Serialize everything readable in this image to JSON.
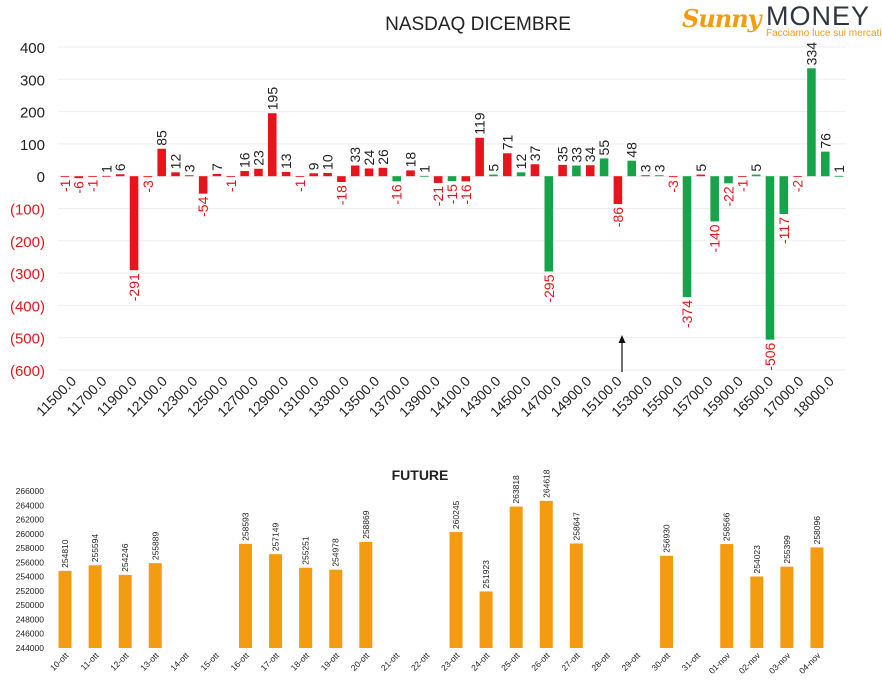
{
  "logo": {
    "word1": "Sunny",
    "word2": "MONEY",
    "tagline": "Facciamo luce sui mercati"
  },
  "colors": {
    "red": "#e8141c",
    "green": "#15a449",
    "orange": "#f39c12",
    "axis_red": "#e8141c",
    "text": "#222222"
  },
  "chart_data": [
    {
      "type": "bar",
      "title": "NASDAQ DICEMBRE",
      "ylim": [
        -600,
        400
      ],
      "yticks": [
        400,
        300,
        200,
        100,
        0,
        -100,
        -200,
        -300,
        -400,
        -500,
        -600
      ],
      "ytick_labels": [
        "400",
        "300",
        "200",
        "100",
        "0",
        "(100)",
        "(200)",
        "(300)",
        "(400)",
        "(500)",
        "(600)"
      ],
      "x_tick_labels": [
        "11500.0",
        "11700.0",
        "11900.0",
        "12100.0",
        "12300.0",
        "12500.0",
        "12700.0",
        "12900.0",
        "13100.0",
        "13300.0",
        "13500.0",
        "13700.0",
        "13900.0",
        "14100.0",
        "14300.0",
        "14500.0",
        "14700.0",
        "14900.0",
        "15100.0",
        "15300.0",
        "15500.0",
        "15700.0",
        "15900.0",
        "16500.0",
        "17000.0",
        "18000.0"
      ],
      "bars": [
        {
          "v": -1,
          "c": "red"
        },
        {
          "v": -6,
          "c": "red"
        },
        {
          "v": -1,
          "c": "red"
        },
        {
          "v": 1,
          "c": "red"
        },
        {
          "v": 6,
          "c": "red"
        },
        {
          "v": -291,
          "c": "red"
        },
        {
          "v": -3,
          "c": "red"
        },
        {
          "v": 85,
          "c": "red"
        },
        {
          "v": 12,
          "c": "red"
        },
        {
          "v": 3,
          "c": "red"
        },
        {
          "v": -54,
          "c": "red"
        },
        {
          "v": 7,
          "c": "red"
        },
        {
          "v": -1,
          "c": "red"
        },
        {
          "v": 16,
          "c": "red"
        },
        {
          "v": 23,
          "c": "red"
        },
        {
          "v": 195,
          "c": "red"
        },
        {
          "v": 13,
          "c": "red"
        },
        {
          "v": -1,
          "c": "red"
        },
        {
          "v": 9,
          "c": "red"
        },
        {
          "v": 10,
          "c": "red"
        },
        {
          "v": -18,
          "c": "red"
        },
        {
          "v": 33,
          "c": "red"
        },
        {
          "v": 24,
          "c": "red"
        },
        {
          "v": 26,
          "c": "red"
        },
        {
          "v": -16,
          "c": "green"
        },
        {
          "v": 18,
          "c": "red"
        },
        {
          "v": 1,
          "c": "green"
        },
        {
          "v": -21,
          "c": "red"
        },
        {
          "v": -15,
          "c": "green"
        },
        {
          "v": -16,
          "c": "red"
        },
        {
          "v": 119,
          "c": "red"
        },
        {
          "v": 5,
          "c": "green"
        },
        {
          "v": 71,
          "c": "red"
        },
        {
          "v": 12,
          "c": "green"
        },
        {
          "v": 37,
          "c": "red"
        },
        {
          "v": -295,
          "c": "green"
        },
        {
          "v": 35,
          "c": "red"
        },
        {
          "v": 33,
          "c": "green"
        },
        {
          "v": 34,
          "c": "red"
        },
        {
          "v": 55,
          "c": "green"
        },
        {
          "v": -86,
          "c": "red"
        },
        {
          "v": 48,
          "c": "green"
        },
        {
          "v": 3,
          "c": "red"
        },
        {
          "v": 3,
          "c": "green"
        },
        {
          "v": -3,
          "c": "red"
        },
        {
          "v": -374,
          "c": "green"
        },
        {
          "v": 5,
          "c": "red"
        },
        {
          "v": -140,
          "c": "green"
        },
        {
          "v": -22,
          "c": "green"
        },
        {
          "v": -1,
          "c": "red"
        },
        {
          "v": 5,
          "c": "green"
        },
        {
          "v": -506,
          "c": "green"
        },
        {
          "v": -117,
          "c": "green"
        },
        {
          "v": -2,
          "c": "red"
        },
        {
          "v": 334,
          "c": "green"
        },
        {
          "v": 76,
          "c": "green"
        },
        {
          "v": 1,
          "c": "green"
        }
      ],
      "grid": true,
      "marker": {
        "type": "arrow-up",
        "near_x": "15100.0"
      }
    },
    {
      "type": "bar",
      "title": "FUTURE",
      "ylim": [
        244000,
        266000
      ],
      "yticks": [
        266000,
        264000,
        262000,
        260000,
        258000,
        256000,
        254000,
        252000,
        250000,
        248000,
        246000,
        244000
      ],
      "ytick_labels": [
        "266000",
        "264000",
        "262000",
        "260000",
        "258000",
        "256000",
        "254000",
        "252000",
        "250000",
        "248000",
        "246000",
        "244000"
      ],
      "categories": [
        "10-ott",
        "11-ott",
        "12-ott",
        "13-ott",
        "14-ott",
        "15-ott",
        "16-ott",
        "17-ott",
        "18-ott",
        "19-ott",
        "20-ott",
        "21-ott",
        "22-ott",
        "23-ott",
        "24-ott",
        "25-ott",
        "26-ott",
        "27-ott",
        "28-ott",
        "29-ott",
        "30-ott",
        "31-ott",
        "01-nov",
        "02-nov",
        "03-nov",
        "04-nov"
      ],
      "values": [
        254810,
        255594,
        254246,
        255889,
        null,
        null,
        258593,
        257149,
        255251,
        254978,
        258869,
        null,
        null,
        260245,
        251923,
        263818,
        264618,
        258647,
        null,
        null,
        256930,
        null,
        258566,
        254023,
        255399,
        258096
      ],
      "grid": false
    }
  ]
}
